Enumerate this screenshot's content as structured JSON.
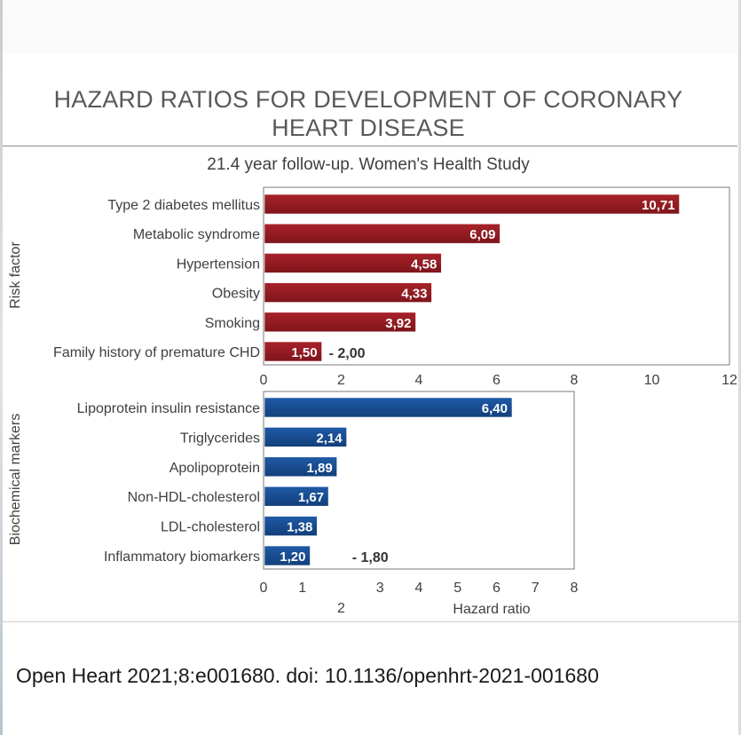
{
  "title_line1": "HAZARD RATIOS FOR DEVELOPMENT OF CORONARY",
  "title_line2": "HEART DISEASE",
  "subtitle": "21.4 year follow-up. Women's Health Study",
  "citation": "Open Heart 2021;8:e001680. doi: 10.1136/openhrt-2021-001680",
  "colors": {
    "risk_bar": "#a8232a",
    "marker_bar": "#1f5aa6",
    "text": "#404040"
  },
  "chart_data": [
    {
      "type": "bar",
      "orientation": "horizontal",
      "ylabel": "Risk factor",
      "xlim": [
        0,
        12
      ],
      "xticks": [
        "0",
        "2",
        "4",
        "6",
        "8",
        "10",
        "12"
      ],
      "categories": [
        "Type 2 diabetes mellitus",
        "Metabolic syndrome",
        "Hypertension",
        "Obesity",
        "Smoking",
        "Family history of premature CHD"
      ],
      "values": [
        10.71,
        6.09,
        4.58,
        4.33,
        3.92,
        1.5
      ],
      "value_labels": [
        "10,71",
        "6,09",
        "4,58",
        "4,33",
        "3,92",
        "1,50"
      ],
      "annotations": [
        {
          "category": "Family history of premature CHD",
          "text": "- 2,00"
        }
      ]
    },
    {
      "type": "bar",
      "orientation": "horizontal",
      "ylabel": "Biochemical markers",
      "xlabel": "Hazard ratio",
      "xlim": [
        0,
        8
      ],
      "xticks": [
        "0",
        "1",
        "2",
        "3",
        "4",
        "5",
        "6",
        "7",
        "8"
      ],
      "categories": [
        "Lipoprotein insulin resistance",
        "Triglycerides",
        "Apolipoprotein",
        "Non-HDL-cholesterol",
        "LDL-cholesterol",
        "Inflammatory biomarkers"
      ],
      "values": [
        6.4,
        2.14,
        1.89,
        1.67,
        1.38,
        1.2
      ],
      "value_labels": [
        "6,40",
        "2,14",
        "1,89",
        "1,67",
        "1,38",
        "1,20"
      ],
      "annotations": [
        {
          "category": "Inflammatory biomarkers",
          "text": "- 1,80"
        }
      ]
    }
  ]
}
